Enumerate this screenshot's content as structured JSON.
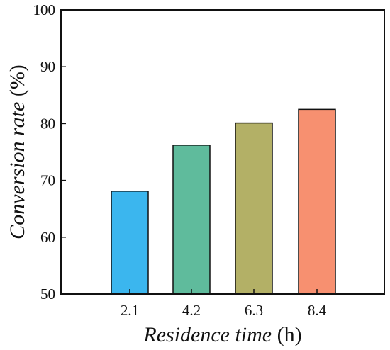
{
  "chart_data": {
    "type": "bar",
    "categories": [
      "2.1",
      "4.2",
      "6.3",
      "8.4"
    ],
    "values": [
      68.1,
      76.2,
      80.1,
      82.5
    ],
    "bar_colors": [
      "#3bb6ee",
      "#5fbb9c",
      "#b3b066",
      "#f79070"
    ],
    "xlabel": "Residence time",
    "xlabel_unit": "(h)",
    "ylabel": "Conversion rate",
    "ylabel_unit": "(%)",
    "ylim": [
      50,
      100
    ],
    "yticks": [
      "50",
      "60",
      "70",
      "80",
      "90",
      "100"
    ],
    "grid": false,
    "legend": "none"
  }
}
